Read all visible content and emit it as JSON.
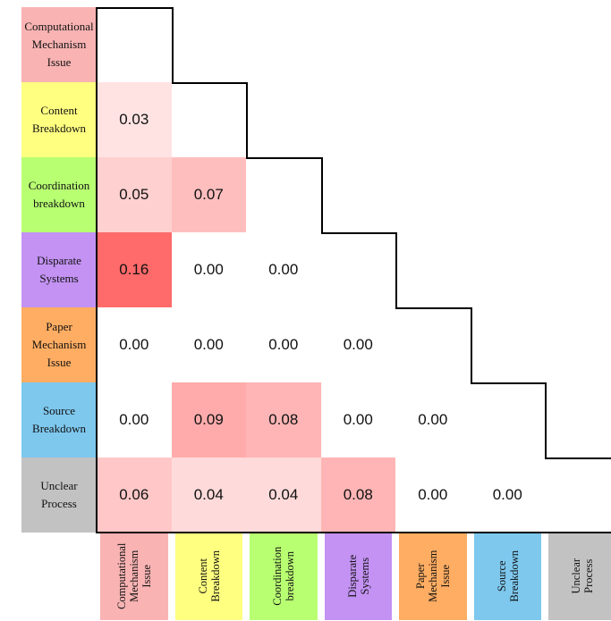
{
  "colors": {
    "Computational Mechanism Issue": "#f9b3b3",
    "Content Breakdown": "#ffff80",
    "Coordination breakdown": "#b8ff72",
    "Disparate Systems": "#c392f2",
    "Paper Mechanism Issue": "#ffad62",
    "Source Breakdown": "#7ec8ee",
    "Unclear Process": "#c2c2c2",
    "heat_max": "#ff6a6a",
    "heat_min": "#ffffff"
  },
  "chart_data": {
    "type": "heatmap",
    "title": "",
    "rows": [
      {
        "lines": [
          "Computational",
          "Mechanism",
          "Issue"
        ],
        "category": "Computational Mechanism Issue"
      },
      {
        "lines": [
          "Content",
          "Breakdown"
        ],
        "category": "Content Breakdown"
      },
      {
        "lines": [
          "Coordination",
          "breakdown"
        ],
        "category": "Coordination breakdown"
      },
      {
        "lines": [
          "Disparate",
          "Systems"
        ],
        "category": "Disparate Systems"
      },
      {
        "lines": [
          "Paper",
          "Mechanism",
          "Issue"
        ],
        "category": "Paper Mechanism Issue"
      },
      {
        "lines": [
          "Source",
          "Breakdown"
        ],
        "category": "Source Breakdown"
      },
      {
        "lines": [
          "Unclear",
          "Process"
        ],
        "category": "Unclear Process"
      }
    ],
    "columns": [
      {
        "lines": [
          "Computational",
          "Mechanism",
          "Issue"
        ],
        "category": "Computational Mechanism Issue"
      },
      {
        "lines": [
          "Content",
          "Breakdown"
        ],
        "category": "Content Breakdown"
      },
      {
        "lines": [
          "Coordination",
          "breakdown"
        ],
        "category": "Coordination breakdown"
      },
      {
        "lines": [
          "Disparate",
          "Systems"
        ],
        "category": "Disparate Systems"
      },
      {
        "lines": [
          "Paper",
          "Mechanism",
          "Issue"
        ],
        "category": "Paper Mechanism Issue"
      },
      {
        "lines": [
          "Source",
          "Breakdown"
        ],
        "category": "Source Breakdown"
      },
      {
        "lines": [
          "Unclear",
          "Process"
        ],
        "category": "Unclear Process"
      }
    ],
    "matrix": [
      [],
      [
        "0.03"
      ],
      [
        "0.05",
        "0.07"
      ],
      [
        "0.16",
        "0.00",
        "0.00"
      ],
      [
        "0.00",
        "0.00",
        "0.00",
        "0.00"
      ],
      [
        "0.00",
        "0.09",
        "0.08",
        "0.00",
        "0.00"
      ],
      [
        "0.06",
        "0.04",
        "0.04",
        "0.08",
        "0.00",
        "0.00"
      ]
    ],
    "value_range": [
      0,
      0.16
    ]
  }
}
